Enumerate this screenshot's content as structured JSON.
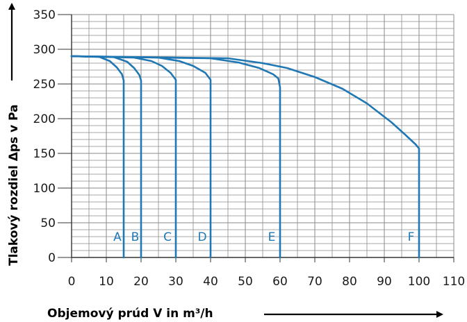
{
  "chart_data": {
    "type": "line",
    "title": "",
    "xlabel": "Objemový prúd V in m³/h",
    "ylabel": "Tlakový rozdiel Δps v Pa",
    "xlim": [
      0,
      110
    ],
    "ylim": [
      0,
      350
    ],
    "x_ticks": [
      "0",
      "10",
      "20",
      "30",
      "40",
      "50",
      "60",
      "70",
      "80",
      "90",
      "100",
      "110"
    ],
    "y_ticks": [
      "0",
      "50",
      "100",
      "150",
      "200",
      "250",
      "300",
      "350"
    ],
    "grid": true,
    "line_color": "#1f77b4",
    "series": [
      {
        "name": "A",
        "x": [
          0,
          8,
          11,
          13,
          14.5,
          15,
          15
        ],
        "y": [
          290,
          289,
          283,
          274,
          264,
          255,
          0
        ]
      },
      {
        "name": "B",
        "x": [
          0,
          12,
          16,
          18,
          19.5,
          20,
          20
        ],
        "y": [
          290,
          289,
          282,
          273,
          263,
          255,
          0
        ]
      },
      {
        "name": "C",
        "x": [
          0,
          18,
          23,
          26,
          28.5,
          30,
          30
        ],
        "y": [
          290,
          288,
          283,
          276,
          266,
          256,
          0
        ]
      },
      {
        "name": "D",
        "x": [
          0,
          25,
          31,
          35,
          38.5,
          40,
          40
        ],
        "y": [
          290,
          288,
          283,
          276,
          266,
          256,
          0
        ]
      },
      {
        "name": "E",
        "x": [
          0,
          40,
          48,
          54,
          58,
          59.5,
          60,
          60
        ],
        "y": [
          290,
          287,
          281,
          273,
          264,
          258,
          245,
          0
        ]
      },
      {
        "name": "F",
        "x": [
          0,
          45,
          55,
          62,
          70,
          78,
          85,
          92,
          96,
          99,
          100,
          100
        ],
        "y": [
          290,
          287,
          280,
          273,
          260,
          243,
          222,
          195,
          177,
          163,
          157,
          0
        ]
      }
    ],
    "labels": [
      {
        "text": "A",
        "x": 13.2,
        "y": 30
      },
      {
        "text": "B",
        "x": 18.3,
        "y": 30
      },
      {
        "text": "C",
        "x": 27.6,
        "y": 30
      },
      {
        "text": "D",
        "x": 37.6,
        "y": 30
      },
      {
        "text": "E",
        "x": 57.6,
        "y": 30
      },
      {
        "text": "F",
        "x": 97.7,
        "y": 30
      }
    ]
  }
}
